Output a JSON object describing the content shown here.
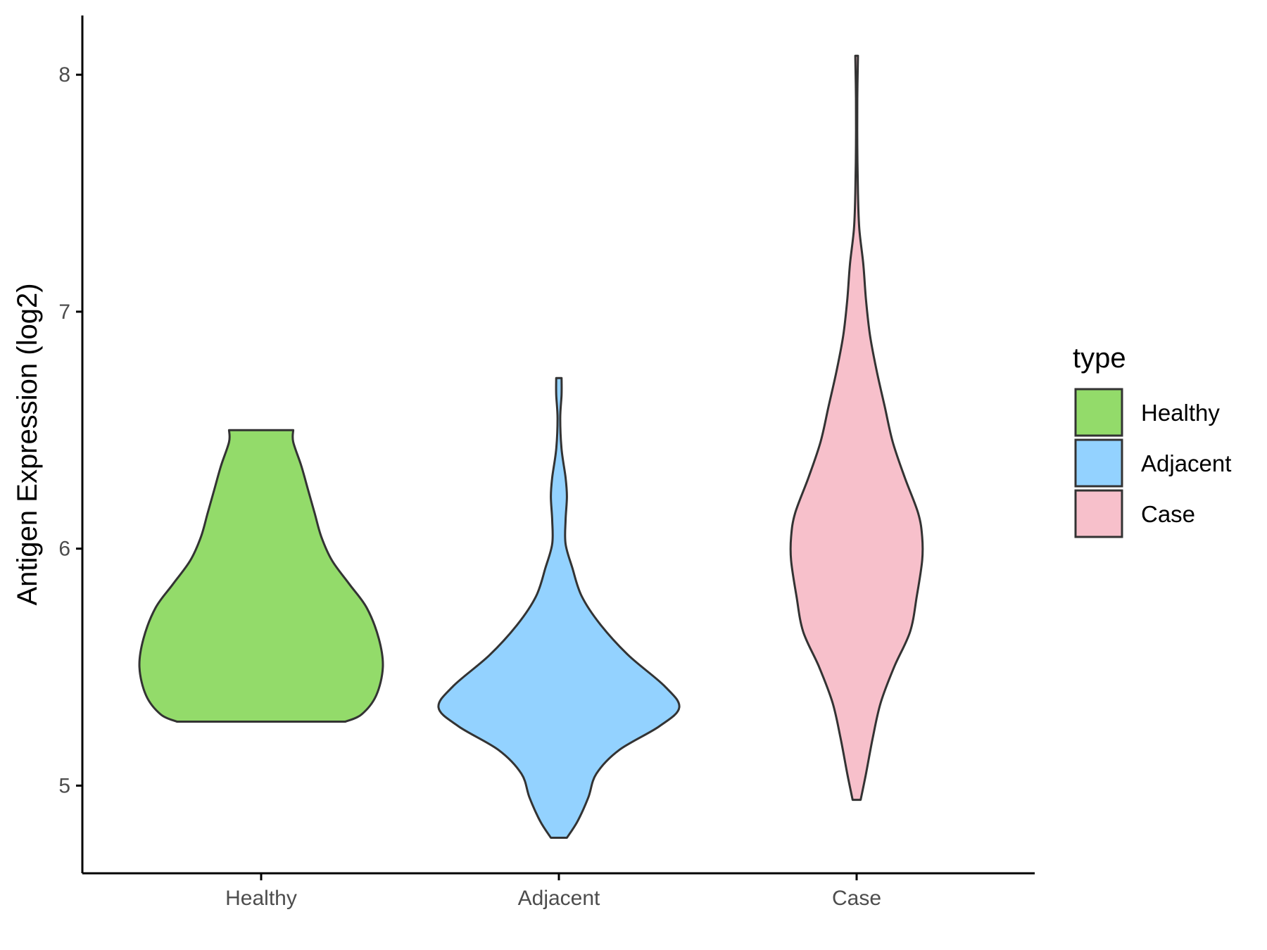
{
  "chart_data": {
    "type": "violin",
    "title": "",
    "xlabel": "",
    "ylabel": "Antigen Expression (log2)",
    "ylim": [
      4.63,
      8.25
    ],
    "yticks": [
      5,
      6,
      7,
      8
    ],
    "grid": false,
    "categories": [
      "Healthy",
      "Adjacent",
      "Case"
    ],
    "legend": {
      "title": "type",
      "position": "right",
      "entries": [
        "Healthy",
        "Adjacent",
        "Case"
      ]
    },
    "series": [
      {
        "name": "Healthy",
        "color": "#93DB6A",
        "min": 5.27,
        "max": 6.5,
        "profile": [
          [
            5.27,
            0.63
          ],
          [
            5.3,
            0.75
          ],
          [
            5.38,
            0.86
          ],
          [
            5.5,
            0.91
          ],
          [
            5.62,
            0.88
          ],
          [
            5.75,
            0.79
          ],
          [
            5.85,
            0.66
          ],
          [
            5.95,
            0.53
          ],
          [
            6.05,
            0.45
          ],
          [
            6.15,
            0.4
          ],
          [
            6.25,
            0.35
          ],
          [
            6.35,
            0.3
          ],
          [
            6.45,
            0.24
          ],
          [
            6.5,
            0.24
          ]
        ]
      },
      {
        "name": "Adjacent",
        "color": "#93D2FF",
        "min": 4.78,
        "max": 6.72,
        "profile": [
          [
            4.78,
            0.06
          ],
          [
            4.85,
            0.14
          ],
          [
            4.95,
            0.22
          ],
          [
            5.05,
            0.28
          ],
          [
            5.15,
            0.45
          ],
          [
            5.25,
            0.75
          ],
          [
            5.33,
            0.9
          ],
          [
            5.42,
            0.79
          ],
          [
            5.55,
            0.52
          ],
          [
            5.68,
            0.31
          ],
          [
            5.8,
            0.17
          ],
          [
            5.92,
            0.1
          ],
          [
            6.02,
            0.05
          ],
          [
            6.12,
            0.05
          ],
          [
            6.22,
            0.06
          ],
          [
            6.3,
            0.05
          ],
          [
            6.42,
            0.02
          ],
          [
            6.55,
            0.01
          ],
          [
            6.65,
            0.02
          ],
          [
            6.72,
            0.02
          ]
        ]
      },
      {
        "name": "Case",
        "color": "#F7C0CB",
        "min": 4.94,
        "max": 8.08,
        "profile": [
          [
            4.94,
            0.03
          ],
          [
            5.05,
            0.07
          ],
          [
            5.2,
            0.12
          ],
          [
            5.35,
            0.18
          ],
          [
            5.5,
            0.28
          ],
          [
            5.65,
            0.4
          ],
          [
            5.8,
            0.45
          ],
          [
            5.95,
            0.49
          ],
          [
            6.05,
            0.49
          ],
          [
            6.15,
            0.46
          ],
          [
            6.3,
            0.36
          ],
          [
            6.45,
            0.27
          ],
          [
            6.6,
            0.21
          ],
          [
            6.75,
            0.15
          ],
          [
            6.9,
            0.1
          ],
          [
            7.05,
            0.07
          ],
          [
            7.2,
            0.05
          ],
          [
            7.35,
            0.02
          ],
          [
            7.5,
            0.01
          ],
          [
            7.7,
            0.005
          ],
          [
            7.9,
            0.005
          ],
          [
            8.08,
            0.01
          ]
        ]
      }
    ]
  }
}
